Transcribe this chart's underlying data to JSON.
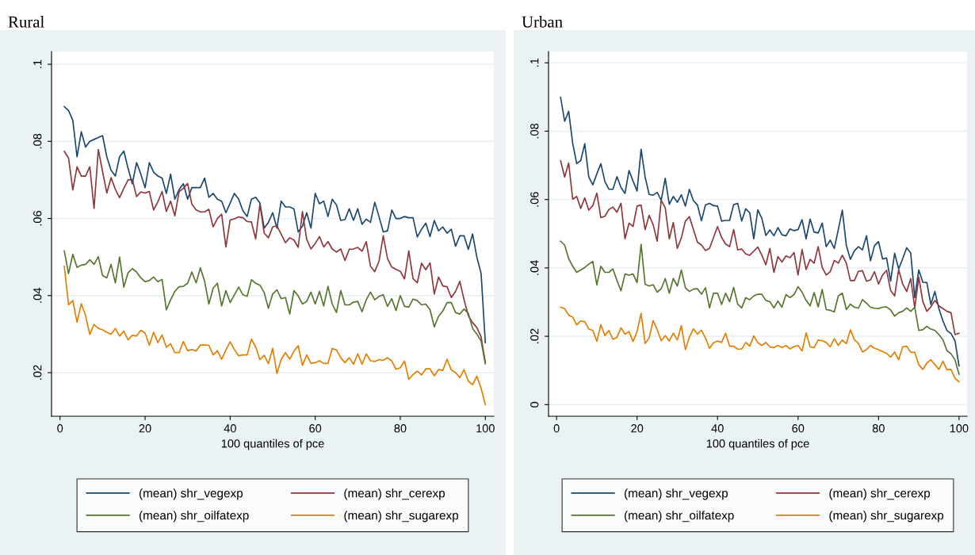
{
  "chart_data": [
    {
      "type": "line",
      "title": "Rural",
      "xlabel": "100 quantiles of pce",
      "grid": "y",
      "legend": "bottom",
      "xlim": [
        -2,
        102
      ],
      "ylim": [
        0.0087,
        0.1033
      ],
      "xticks": [
        0,
        20,
        40,
        60,
        80,
        100
      ],
      "yticks": [
        {
          "value": 0.02,
          "label": ".02"
        },
        {
          "value": 0.04,
          "label": ".04"
        },
        {
          "value": 0.06,
          "label": ".06"
        },
        {
          "value": 0.08,
          "label": ".08"
        },
        {
          "value": 0.1,
          "label": ".1"
        }
      ],
      "x": [
        1,
        2,
        3,
        4,
        5,
        6,
        7,
        8,
        9,
        10,
        11,
        12,
        13,
        14,
        15,
        16,
        17,
        18,
        19,
        20,
        21,
        22,
        23,
        24,
        25,
        26,
        27,
        28,
        29,
        30,
        31,
        32,
        33,
        34,
        35,
        36,
        37,
        38,
        39,
        40,
        41,
        42,
        43,
        44,
        45,
        46,
        47,
        48,
        49,
        50,
        51,
        52,
        53,
        54,
        55,
        56,
        57,
        58,
        59,
        60,
        61,
        62,
        63,
        64,
        65,
        66,
        67,
        68,
        69,
        70,
        71,
        72,
        73,
        74,
        75,
        76,
        77,
        78,
        79,
        80,
        81,
        82,
        83,
        84,
        85,
        86,
        87,
        88,
        89,
        90,
        91,
        92,
        93,
        94,
        95,
        96,
        97,
        98,
        99,
        100
      ],
      "series": [
        {
          "name": "(mean) shr_vegexp",
          "color": "#1a476f",
          "values": [
            0.089,
            0.088,
            0.0855,
            0.076,
            0.0825,
            0.0785,
            0.08,
            0.0805,
            0.081,
            0.0815,
            0.076,
            0.0725,
            0.071,
            0.076,
            0.0775,
            0.073,
            0.069,
            0.0745,
            0.0715,
            0.068,
            0.0745,
            0.072,
            0.071,
            0.0705,
            0.0665,
            0.0715,
            0.065,
            0.0675,
            0.069,
            0.065,
            0.068,
            0.068,
            0.068,
            0.0705,
            0.0655,
            0.0665,
            0.065,
            0.0645,
            0.0615,
            0.064,
            0.0665,
            0.065,
            0.062,
            0.0605,
            0.065,
            0.0655,
            0.064,
            0.0575,
            0.059,
            0.0615,
            0.0575,
            0.0645,
            0.063,
            0.063,
            0.0625,
            0.0565,
            0.058,
            0.0615,
            0.0575,
            0.0665,
            0.0638,
            0.0645,
            0.0605,
            0.065,
            0.0635,
            0.0595,
            0.0597,
            0.0625,
            0.0595,
            0.0625,
            0.0585,
            0.0598,
            0.059,
            0.0642,
            0.0605,
            0.0565,
            0.0568,
            0.0622,
            0.06,
            0.06,
            0.0605,
            0.0602,
            0.0602,
            0.0552,
            0.0572,
            0.0588,
            0.0553,
            0.0595,
            0.0568,
            0.0578,
            0.0562,
            0.0572,
            0.0528,
            0.0555,
            0.0555,
            0.052,
            0.056,
            0.05,
            0.0458,
            0.0278
          ]
        },
        {
          "name": "(mean) shr_cerexp",
          "color": "#90353b",
          "values": [
            0.0774,
            0.0757,
            0.0674,
            0.0734,
            0.071,
            0.071,
            0.0734,
            0.0626,
            0.0779,
            0.0722,
            0.0666,
            0.0706,
            0.0676,
            0.0654,
            0.0678,
            0.07,
            0.0701,
            0.0657,
            0.0669,
            0.0666,
            0.067,
            0.0622,
            0.0643,
            0.067,
            0.0618,
            0.0645,
            0.0607,
            0.067,
            0.0678,
            0.0691,
            0.0637,
            0.0622,
            0.0617,
            0.0617,
            0.0624,
            0.0578,
            0.06,
            0.0611,
            0.0526,
            0.0596,
            0.0599,
            0.0604,
            0.0602,
            0.0592,
            0.0591,
            0.0547,
            0.0637,
            0.0562,
            0.055,
            0.0578,
            0.0581,
            0.0559,
            0.0537,
            0.055,
            0.0544,
            0.0525,
            0.0618,
            0.0546,
            0.0521,
            0.0535,
            0.0553,
            0.0526,
            0.054,
            0.0521,
            0.0513,
            0.0521,
            0.0491,
            0.052,
            0.0521,
            0.0525,
            0.0515,
            0.054,
            0.0476,
            0.0462,
            0.0489,
            0.0555,
            0.0496,
            0.0474,
            0.0468,
            0.0463,
            0.0443,
            0.0516,
            0.0444,
            0.0433,
            0.0484,
            0.0467,
            0.0485,
            0.0404,
            0.0448,
            0.0425,
            0.0423,
            0.0395,
            0.0411,
            0.0437,
            0.0389,
            0.0348,
            0.033,
            0.0317,
            0.0293,
            0.0226
          ]
        },
        {
          "name": "(mean) shr_oilfatexp",
          "color": "#55752f",
          "values": [
            0.0516,
            0.0457,
            0.0507,
            0.0473,
            0.0479,
            0.0481,
            0.0493,
            0.0481,
            0.0501,
            0.0452,
            0.0446,
            0.0481,
            0.0433,
            0.05,
            0.0422,
            0.0459,
            0.047,
            0.0461,
            0.0446,
            0.0436,
            0.0439,
            0.0448,
            0.0436,
            0.0442,
            0.0363,
            0.0389,
            0.0411,
            0.0423,
            0.0424,
            0.0432,
            0.0461,
            0.0433,
            0.0472,
            0.0437,
            0.0378,
            0.0419,
            0.0432,
            0.0373,
            0.0413,
            0.0382,
            0.0402,
            0.0422,
            0.0402,
            0.0398,
            0.0441,
            0.0432,
            0.0427,
            0.0408,
            0.0367,
            0.0404,
            0.0415,
            0.0392,
            0.0395,
            0.0352,
            0.0413,
            0.0399,
            0.0378,
            0.0385,
            0.0409,
            0.0378,
            0.0411,
            0.0373,
            0.0424,
            0.0378,
            0.0356,
            0.0413,
            0.0376,
            0.0376,
            0.0383,
            0.0385,
            0.0358,
            0.0389,
            0.0409,
            0.0389,
            0.0398,
            0.0402,
            0.0372,
            0.0392,
            0.0361,
            0.04,
            0.0372,
            0.037,
            0.0391,
            0.0387,
            0.0376,
            0.0378,
            0.0363,
            0.0319,
            0.0346,
            0.036,
            0.0382,
            0.0382,
            0.0356,
            0.0352,
            0.0365,
            0.0354,
            0.0315,
            0.03,
            0.0282,
            0.0223
          ]
        },
        {
          "name": "(mean) shr_sugarexp",
          "color": "#e37e00",
          "values": [
            0.0476,
            0.0376,
            0.0387,
            0.0331,
            0.0379,
            0.0348,
            0.0299,
            0.0325,
            0.0315,
            0.0311,
            0.0305,
            0.03,
            0.0315,
            0.0295,
            0.0308,
            0.0285,
            0.0297,
            0.0295,
            0.031,
            0.0303,
            0.0271,
            0.0305,
            0.0278,
            0.0298,
            0.0266,
            0.0275,
            0.0252,
            0.0252,
            0.0281,
            0.0257,
            0.026,
            0.0256,
            0.0272,
            0.0272,
            0.0271,
            0.0246,
            0.0257,
            0.0235,
            0.0259,
            0.028,
            0.026,
            0.0244,
            0.0246,
            0.0246,
            0.0287,
            0.0267,
            0.0234,
            0.0245,
            0.0223,
            0.0263,
            0.0198,
            0.0234,
            0.0252,
            0.0235,
            0.0256,
            0.027,
            0.0219,
            0.0246,
            0.0224,
            0.0226,
            0.0231,
            0.0224,
            0.0224,
            0.0263,
            0.0259,
            0.0239,
            0.0226,
            0.0239,
            0.0222,
            0.0249,
            0.0222,
            0.0249,
            0.0231,
            0.0229,
            0.0234,
            0.0232,
            0.0239,
            0.023,
            0.0209,
            0.0213,
            0.023,
            0.0183,
            0.0195,
            0.0204,
            0.0194,
            0.021,
            0.021,
            0.0192,
            0.0208,
            0.0206,
            0.0235,
            0.0207,
            0.02,
            0.0187,
            0.0208,
            0.0178,
            0.0169,
            0.0191,
            0.016,
            0.0117
          ]
        }
      ]
    },
    {
      "type": "line",
      "title": "Urban",
      "xlabel": "100 quantiles of pce",
      "grid": "y",
      "legend": "bottom",
      "xlim": [
        -2,
        102
      ],
      "ylim": [
        -0.0034,
        0.1033
      ],
      "xticks": [
        0,
        20,
        40,
        60,
        80,
        100
      ],
      "yticks": [
        0,
        {
          "value": 0.02,
          "label": ".02"
        },
        {
          "value": 0.04,
          "label": ".04"
        },
        {
          "value": 0.06,
          "label": ".06"
        },
        {
          "value": 0.08,
          "label": ".08"
        },
        {
          "value": 0.1,
          "label": ".1"
        }
      ],
      "x": [
        1,
        2,
        3,
        4,
        5,
        6,
        7,
        8,
        9,
        10,
        11,
        12,
        13,
        14,
        15,
        16,
        17,
        18,
        19,
        20,
        21,
        22,
        23,
        24,
        25,
        26,
        27,
        28,
        29,
        30,
        31,
        32,
        33,
        34,
        35,
        36,
        37,
        38,
        39,
        40,
        41,
        42,
        43,
        44,
        45,
        46,
        47,
        48,
        49,
        50,
        51,
        52,
        53,
        54,
        55,
        56,
        57,
        58,
        59,
        60,
        61,
        62,
        63,
        64,
        65,
        66,
        67,
        68,
        69,
        70,
        71,
        72,
        73,
        74,
        75,
        76,
        77,
        78,
        79,
        80,
        81,
        82,
        83,
        84,
        85,
        86,
        87,
        88,
        89,
        90,
        91,
        92,
        93,
        94,
        95,
        96,
        97,
        98,
        99,
        100
      ],
      "series": [
        {
          "name": "(mean) shr_vegexp",
          "color": "#1a476f",
          "values": [
            0.0899,
            0.0829,
            0.0858,
            0.0765,
            0.0705,
            0.0714,
            0.0763,
            0.0666,
            0.0643,
            0.0675,
            0.0705,
            0.0653,
            0.063,
            0.063,
            0.0667,
            0.0635,
            0.0618,
            0.0685,
            0.0654,
            0.0625,
            0.0747,
            0.0666,
            0.0615,
            0.0613,
            0.0621,
            0.0598,
            0.0662,
            0.0586,
            0.0609,
            0.0592,
            0.0614,
            0.0581,
            0.063,
            0.0597,
            0.0584,
            0.0538,
            0.0584,
            0.0589,
            0.0582,
            0.0581,
            0.0537,
            0.0539,
            0.0539,
            0.0585,
            0.0589,
            0.0537,
            0.0573,
            0.0561,
            0.0485,
            0.057,
            0.0545,
            0.0495,
            0.0511,
            0.0494,
            0.0518,
            0.0497,
            0.0494,
            0.0514,
            0.0509,
            0.0512,
            0.0541,
            0.0485,
            0.0543,
            0.0505,
            0.0502,
            0.0531,
            0.0462,
            0.0481,
            0.0457,
            0.0512,
            0.0569,
            0.0466,
            0.0425,
            0.045,
            0.0462,
            0.0453,
            0.0494,
            0.0421,
            0.0465,
            0.0477,
            0.0426,
            0.0429,
            0.0361,
            0.0443,
            0.0397,
            0.0427,
            0.0459,
            0.0443,
            0.0313,
            0.0394,
            0.0358,
            0.0357,
            0.0293,
            0.0331,
            0.0281,
            0.0245,
            0.0217,
            0.0208,
            0.0187,
            0.0113
          ]
        },
        {
          "name": "(mean) shr_cerexp",
          "color": "#90353b",
          "values": [
            0.0713,
            0.0666,
            0.0707,
            0.0601,
            0.0609,
            0.0574,
            0.0605,
            0.0569,
            0.0582,
            0.0619,
            0.0547,
            0.0551,
            0.0571,
            0.0578,
            0.0563,
            0.0589,
            0.0485,
            0.0531,
            0.0521,
            0.0581,
            0.0584,
            0.0512,
            0.0554,
            0.0526,
            0.0478,
            0.0598,
            0.0576,
            0.0485,
            0.0533,
            0.0457,
            0.0488,
            0.0537,
            0.055,
            0.0512,
            0.0475,
            0.0467,
            0.0451,
            0.0457,
            0.0489,
            0.0521,
            0.0489,
            0.047,
            0.0462,
            0.0512,
            0.0453,
            0.0455,
            0.0441,
            0.0437,
            0.0449,
            0.0461,
            0.0437,
            0.0409,
            0.0457,
            0.0387,
            0.0433,
            0.0417,
            0.0435,
            0.043,
            0.0445,
            0.0379,
            0.0454,
            0.0395,
            0.0425,
            0.0414,
            0.0462,
            0.0401,
            0.0379,
            0.0389,
            0.0422,
            0.0414,
            0.0437,
            0.0414,
            0.0363,
            0.0363,
            0.039,
            0.0392,
            0.0361,
            0.0365,
            0.0389,
            0.0353,
            0.0379,
            0.0393,
            0.0334,
            0.0318,
            0.0395,
            0.0353,
            0.0331,
            0.0369,
            0.0283,
            0.0373,
            0.0302,
            0.0273,
            0.0286,
            0.0305,
            0.0289,
            0.0281,
            0.0273,
            0.0269,
            0.0205,
            0.0209
          ]
        },
        {
          "name": "(mean) shr_oilfatexp",
          "color": "#55752f",
          "values": [
            0.0478,
            0.0467,
            0.0427,
            0.0405,
            0.0387,
            0.0394,
            0.0401,
            0.0411,
            0.0419,
            0.035,
            0.0405,
            0.0387,
            0.0387,
            0.0397,
            0.0363,
            0.0333,
            0.0382,
            0.0379,
            0.0382,
            0.0357,
            0.0469,
            0.0352,
            0.0347,
            0.0351,
            0.0329,
            0.0339,
            0.0369,
            0.0326,
            0.0369,
            0.0347,
            0.0394,
            0.0342,
            0.0331,
            0.0338,
            0.0339,
            0.0323,
            0.0342,
            0.0283,
            0.0326,
            0.0326,
            0.0293,
            0.0326,
            0.0301,
            0.0343,
            0.0294,
            0.0283,
            0.0313,
            0.0307,
            0.0318,
            0.0323,
            0.0323,
            0.0305,
            0.0301,
            0.0283,
            0.0303,
            0.0285,
            0.0322,
            0.0313,
            0.0322,
            0.0345,
            0.0329,
            0.0305,
            0.0289,
            0.0328,
            0.0286,
            0.0337,
            0.0278,
            0.0276,
            0.0271,
            0.0318,
            0.0326,
            0.0278,
            0.0294,
            0.0285,
            0.0282,
            0.0307,
            0.0297,
            0.0285,
            0.0282,
            0.0281,
            0.0285,
            0.0286,
            0.0277,
            0.0259,
            0.0269,
            0.0273,
            0.0283,
            0.0273,
            0.0285,
            0.0217,
            0.0219,
            0.0229,
            0.0221,
            0.0217,
            0.0205,
            0.019,
            0.0158,
            0.0149,
            0.0131,
            0.0089
          ]
        },
        {
          "name": "(mean) shr_sugarexp",
          "color": "#e37e00",
          "values": [
            0.0285,
            0.0281,
            0.0262,
            0.0256,
            0.0233,
            0.0245,
            0.0243,
            0.0221,
            0.0217,
            0.0185,
            0.0234,
            0.0202,
            0.0217,
            0.0191,
            0.0197,
            0.0225,
            0.0206,
            0.0214,
            0.0185,
            0.0214,
            0.0267,
            0.0179,
            0.0195,
            0.0246,
            0.0219,
            0.0187,
            0.0202,
            0.0186,
            0.0209,
            0.0189,
            0.0231,
            0.0161,
            0.0197,
            0.0222,
            0.0206,
            0.0218,
            0.0195,
            0.0165,
            0.0181,
            0.0186,
            0.0182,
            0.0209,
            0.0171,
            0.0171,
            0.0162,
            0.0163,
            0.0182,
            0.0171,
            0.0201,
            0.0181,
            0.0173,
            0.0182,
            0.0169,
            0.0167,
            0.0173,
            0.0167,
            0.0173,
            0.0163,
            0.017,
            0.0173,
            0.0157,
            0.021,
            0.0169,
            0.0167,
            0.0189,
            0.0187,
            0.0182,
            0.0169,
            0.0193,
            0.0173,
            0.0189,
            0.0178,
            0.0219,
            0.019,
            0.0179,
            0.0154,
            0.0161,
            0.0173,
            0.0165,
            0.0161,
            0.0155,
            0.015,
            0.0139,
            0.0154,
            0.0131,
            0.0169,
            0.0171,
            0.0153,
            0.0153,
            0.0117,
            0.0103,
            0.0122,
            0.0131,
            0.0117,
            0.0103,
            0.0127,
            0.0102,
            0.0103,
            0.0077,
            0.0067
          ]
        }
      ]
    }
  ]
}
